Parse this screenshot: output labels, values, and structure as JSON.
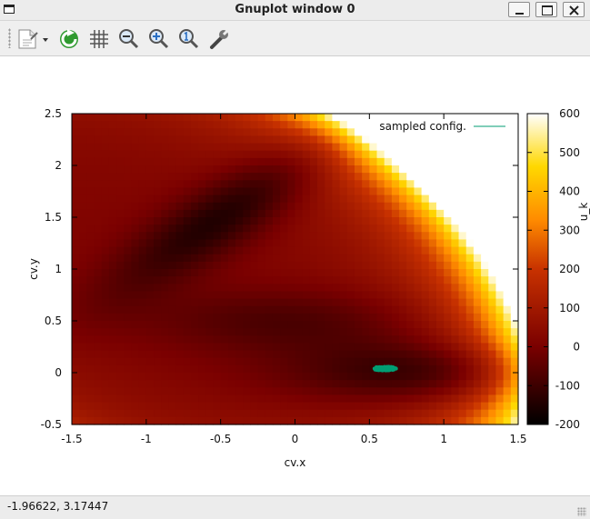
{
  "window": {
    "title": "Gnuplot window 0",
    "buttons": [
      "minimize",
      "maximize",
      "close"
    ]
  },
  "toolbar": {
    "items": [
      {
        "name": "export-icon",
        "has_dropdown": true
      },
      {
        "name": "replot-icon"
      },
      {
        "name": "grid-icon"
      },
      {
        "name": "zoom-out-icon"
      },
      {
        "name": "zoom-in-icon"
      },
      {
        "name": "unzoom-icon"
      },
      {
        "name": "configure-icon"
      }
    ]
  },
  "status": {
    "coordinates": "-1.96622,  3.17447"
  },
  "chart_data": {
    "type": "heatmap",
    "title": "",
    "xlabel": "cv.x",
    "ylabel": "cv.y",
    "xlim": [
      -1.5,
      1.5
    ],
    "ylim": [
      -0.5,
      2.5
    ],
    "x_ticks": [
      "-1.5",
      "-1",
      "-0.5",
      "0",
      "0.5",
      "1",
      "1.5"
    ],
    "y_ticks": [
      "-0.5",
      "0",
      "0.5",
      "1",
      "1.5",
      "2",
      "2.5"
    ],
    "colorbar": {
      "label": "u_k",
      "range": [
        -200,
        600
      ],
      "ticks": [
        "-200",
        "-100",
        "0",
        "100",
        "200",
        "300",
        "400",
        "500",
        "600"
      ],
      "palette": "black-red-orange-yellow-white"
    },
    "surface": {
      "description_of_field": "Müller-Brown-like potential surface",
      "minima": [
        {
          "x": -0.56,
          "y": 1.44,
          "value": -146
        },
        {
          "x": 0.62,
          "y": 0.03,
          "value": -108
        },
        {
          "x": -0.05,
          "y": 0.47,
          "value": -81
        }
      ],
      "clip_max": 600
    },
    "series": [
      {
        "name": "sampled config.",
        "color": "#009e73",
        "points_center": [
          0.6,
          0.04
        ],
        "points_spread": [
          0.08,
          0.02
        ]
      }
    ],
    "legend": {
      "position": "top-right",
      "text": "sampled config."
    }
  }
}
